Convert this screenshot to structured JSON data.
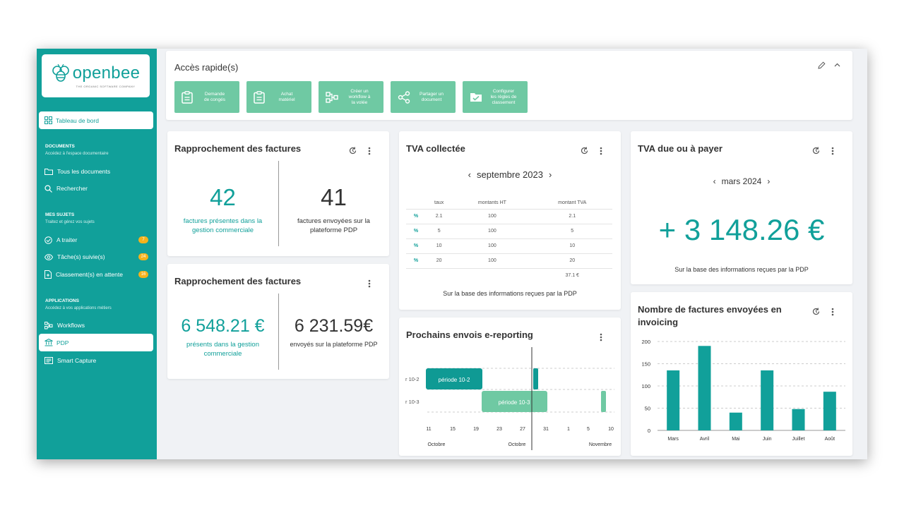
{
  "brand": {
    "name": "openbee",
    "tagline": "THE ORGANIC SOFTWARE COMPANY",
    "accent": "#11a09a",
    "quick_action_color": "#6fc9a3",
    "badge_color": "#f5b21c"
  },
  "sidebar": {
    "dashboard": "Tableau de bord",
    "documents": {
      "title": "DOCUMENTS",
      "subtitle": "Accédez à l'espace documentaire",
      "items": [
        "Tous les documents",
        "Rechercher"
      ]
    },
    "subjects": {
      "title": "MES SUJETS",
      "subtitle": "Traitez et gérez vos sujets",
      "items": [
        {
          "label": "A traiter",
          "badge": "7"
        },
        {
          "label": "Tâche(s) suivie(s)",
          "badge": "24"
        },
        {
          "label": "Classement(s) en attente",
          "badge": "16"
        }
      ]
    },
    "applications": {
      "title": "APPLICATIONS",
      "subtitle": "Accédez à vos applications métiers",
      "items": [
        "Workflows",
        "PDP",
        "Smart Capture"
      ]
    }
  },
  "quick_access": {
    "title": "Accès rapide(s)",
    "actions": [
      {
        "label_1": "Demande",
        "label_2": "de congés",
        "label_3": ""
      },
      {
        "label_1": "Achat",
        "label_2": "matériel",
        "label_3": ""
      },
      {
        "label_1": "Créer un",
        "label_2": "workflow à",
        "label_3": "la volée"
      },
      {
        "label_1": "Partager un",
        "label_2": "document",
        "label_3": ""
      },
      {
        "label_1": "Configurer",
        "label_2": "les règles de",
        "label_3": "classement"
      }
    ]
  },
  "rapprochement_1": {
    "title": "Rapprochement des factures",
    "left_value": "42",
    "left_caption": "factures présentes dans la gestion commerciale",
    "right_value": "41",
    "right_caption": "factures envoyées sur la plateforme PDP"
  },
  "rapprochement_2": {
    "title": "Rapprochement des factures",
    "left_value": "6 548.21 €",
    "left_caption": "présents dans la gestion commerciale",
    "right_value": "6 231.59€",
    "right_caption": "envoyés sur la plateforme PDP"
  },
  "tva_collectee": {
    "title": "TVA collectée",
    "period": "septembre 2023",
    "columns": [
      "",
      "taux",
      "montants HT",
      "montant TVA"
    ],
    "rows": [
      {
        "icon": "%",
        "taux": "2.1",
        "ht": "100",
        "tva": "2.1"
      },
      {
        "icon": "%",
        "taux": "5",
        "ht": "100",
        "tva": "5"
      },
      {
        "icon": "%",
        "taux": "10",
        "ht": "100",
        "tva": "10"
      },
      {
        "icon": "%",
        "taux": "20",
        "ht": "100",
        "tva": "20"
      }
    ],
    "total": "37.1 €",
    "footer": "Sur la base des informations reçues par la PDP"
  },
  "tva_due": {
    "title": "TVA due ou à payer",
    "period": "mars 2024",
    "amount": "+ 3 148.26 €",
    "footer": "Sur la base des informations reçues par la PDP"
  },
  "ereporting": {
    "title": "Prochains envois e-reporting",
    "rows": [
      {
        "label": "r 10-2",
        "bar_label": "période 10-2"
      },
      {
        "label": "r 10-3",
        "bar_label": "période 10-3"
      }
    ],
    "ticks": [
      "11",
      "15",
      "19",
      "23",
      "27",
      "31",
      "1",
      "5",
      "10"
    ],
    "months": [
      "Octobre",
      "Octobre",
      "Novembre"
    ]
  },
  "chart_data": {
    "type": "bar",
    "title": "Nombre de factures envoyées en invoicing",
    "categories": [
      "Mars",
      "Avril",
      "Mai",
      "Juin",
      "Juillet",
      "Août"
    ],
    "values": [
      135,
      190,
      40,
      135,
      48,
      87
    ],
    "ylim": [
      0,
      200
    ],
    "yticks": [
      "0",
      "50",
      "100",
      "150",
      "200"
    ],
    "grid": true,
    "color": "#11a09a"
  }
}
